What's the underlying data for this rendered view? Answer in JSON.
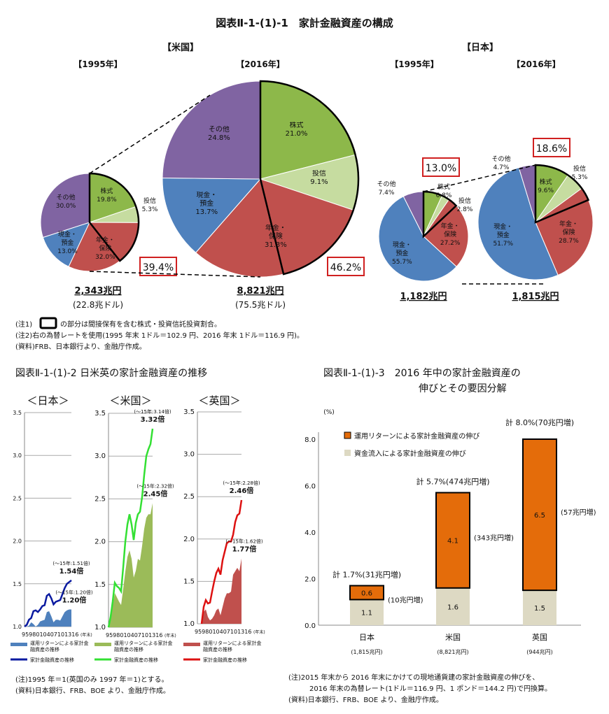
{
  "figure1": {
    "title": "図表Ⅱ-1-(1)-1　家計金融資産の構成",
    "us_label": "【米国】",
    "jp_label": "【日本】",
    "notes": [
      "(注1)",
      "の部分は間接保有を含む株式・投資信託投資割合。",
      "(注2)右の為替レートを使用(1995 年末  1ドル＝102.9 円、2016 年末  1ドル＝116.9 円)。",
      "(資料)FRB、日本銀行より、金融庁作成。"
    ]
  },
  "figure2": {
    "title": "図表Ⅱ-1-(1)-2  日米英の家計金融資産の推移",
    "notes": [
      "(注)1995 年＝1(英国のみ 1997 年＝1)とする。",
      "(資料)日本銀行、FRB、BOE より、金融庁作成。"
    ]
  },
  "figure3": {
    "title_line1": "図表Ⅱ-1-(1)-3　2016 年中の家計金融資産の",
    "title_line2": "伸びとその要因分解",
    "notes": [
      "(注)2015 年末から 2016 年末にかけての現地通貨建の家計金融資産の伸びを、",
      "2016 年末の為替レート(1ドル＝116.9 円、1 ポンド＝144.2 円)で円換算。",
      "(資料)日本銀行、FRB、BOE より、金融庁作成。"
    ]
  },
  "colors": {
    "stocks": "#8db84a",
    "funds": "#c6dca0",
    "pension": "#c0504d",
    "cash": "#4f81bd",
    "other": "#8064a2",
    "highlight_box": "#d02020",
    "jp_line": "#0a1aa0",
    "jp_area": "#4f81bd",
    "us_line": "#33e033",
    "us_area": "#9bbb59",
    "uk_line": "#dd1111",
    "uk_area": "#c0504d",
    "bar_return": "#e46c0a",
    "bar_inflow": "#ddd9c3"
  },
  "chart_data": [
    {
      "type": "pie",
      "title": "【1995年】",
      "country": "米国",
      "total": "2,343兆円",
      "total_sub": "(22.8兆ドル)",
      "indirect_share": "39.4%",
      "slices": [
        {
          "label": "株式",
          "value": 19.8
        },
        {
          "label": "投信",
          "value": 5.3
        },
        {
          "label": "年金・保険",
          "value": 32.0
        },
        {
          "label": "現金・預金",
          "value": 13.0
        },
        {
          "label": "その他",
          "value": 30.0
        }
      ]
    },
    {
      "type": "pie",
      "title": "【2016年】",
      "country": "米国",
      "total": "8,821兆円",
      "total_sub": "(75.5兆ドル)",
      "indirect_share": "46.2%",
      "slices": [
        {
          "label": "株式",
          "value": 21.0
        },
        {
          "label": "投信",
          "value": 9.1
        },
        {
          "label": "年金・保険",
          "value": 31.3
        },
        {
          "label": "現金・預金",
          "value": 13.7
        },
        {
          "label": "その他",
          "value": 24.8
        }
      ]
    },
    {
      "type": "pie",
      "title": "【1995年】",
      "country": "日本",
      "total": "1,182兆円",
      "total_sub": "",
      "indirect_share": "13.0%",
      "slices": [
        {
          "label": "株式",
          "value": 6.8
        },
        {
          "label": "投信",
          "value": 2.8
        },
        {
          "label": "年金・保険",
          "value": 27.2
        },
        {
          "label": "現金・預金",
          "value": 55.7
        },
        {
          "label": "その他",
          "value": 7.4
        }
      ]
    },
    {
      "type": "pie",
      "title": "【2016年】",
      "country": "日本",
      "total": "1,815兆円",
      "total_sub": "",
      "indirect_share": "18.6%",
      "slices": [
        {
          "label": "株式",
          "value": 9.6
        },
        {
          "label": "投信",
          "value": 5.3
        },
        {
          "label": "年金・保険",
          "value": 28.7
        },
        {
          "label": "現金・預金",
          "value": 51.7
        },
        {
          "label": "その他",
          "value": 4.7
        }
      ]
    },
    {
      "type": "line",
      "title": "＜日本＞",
      "ylim": [
        1.0,
        3.5
      ],
      "yticks": [
        "1.0",
        "1.5",
        "2.0",
        "2.5",
        "3.0",
        "3.5"
      ],
      "xtick_label": "959801040710131б",
      "x_unit": "(年末)",
      "start_year": 1995,
      "series": [
        {
          "name": "家計金融資産の推移",
          "kind": "line",
          "values": [
            1.0,
            1.02,
            1.08,
            1.1,
            1.18,
            1.19,
            1.17,
            1.2,
            1.24,
            1.25,
            1.36,
            1.38,
            1.33,
            1.26,
            1.29,
            1.3,
            1.31,
            1.38,
            1.45,
            1.5,
            1.52,
            1.54
          ]
        },
        {
          "name": "運用リターンによる家計金融資産の推移",
          "kind": "area",
          "values": [
            1.0,
            1.0,
            1.01,
            1.05,
            1.03,
            1.0,
            1.02,
            1.06,
            1.07,
            1.08,
            1.17,
            1.18,
            1.12,
            1.05,
            1.08,
            1.08,
            1.07,
            1.12,
            1.17,
            1.19,
            1.2,
            1.2
          ]
        }
      ],
      "end_labels": {
        "line": "1.54倍",
        "line_note": "(～15年:1.51倍)",
        "area": "1.20倍",
        "area_note": "(～15年:1.20倍)"
      }
    },
    {
      "type": "line",
      "title": "＜米国＞",
      "ylim": [
        1.0,
        3.5
      ],
      "yticks": [
        "1.0",
        "1.5",
        "2.0",
        "2.5",
        "3.0",
        "3.5"
      ],
      "xtick_label": "959801040710131б",
      "x_unit": "(年末)",
      "start_year": 1995,
      "series": [
        {
          "name": "家計金融資産の推移",
          "kind": "line",
          "values": [
            1.0,
            1.12,
            1.3,
            1.52,
            1.48,
            1.46,
            1.42,
            1.7,
            2.0,
            2.2,
            2.32,
            2.2,
            2.02,
            2.22,
            2.32,
            2.35,
            2.52,
            2.78,
            3.0,
            3.08,
            3.14,
            3.32
          ]
        },
        {
          "name": "運用リターンによる家計金融資産の推移",
          "kind": "area",
          "values": [
            1.0,
            1.1,
            1.25,
            1.4,
            1.35,
            1.3,
            1.26,
            1.45,
            1.65,
            1.82,
            1.9,
            1.8,
            1.58,
            1.66,
            1.8,
            1.78,
            1.95,
            2.15,
            2.28,
            2.32,
            2.32,
            2.45
          ]
        }
      ],
      "end_labels": {
        "line": "3.32倍",
        "line_note": "(～15年:3.14倍)",
        "area": "2.45倍",
        "area_note": "(～15年:2.32倍)"
      }
    },
    {
      "type": "line",
      "title": "＜英国＞",
      "ylim": [
        1.0,
        3.5
      ],
      "yticks": [
        "1.0",
        "1.5",
        "2.0",
        "2.5",
        "3.0",
        "3.5"
      ],
      "xtick_label": "959801040710131б",
      "x_unit": "(年末)",
      "start_year": 1997,
      "series": [
        {
          "name": "家計金融資産の推移",
          "kind": "line",
          "values": [
            1.0,
            1.2,
            1.28,
            1.24,
            1.25,
            1.38,
            1.5,
            1.6,
            1.65,
            1.58,
            1.75,
            1.85,
            1.95,
            1.97,
            1.97,
            2.05,
            2.2,
            2.28,
            2.3,
            2.46
          ]
        },
        {
          "name": "運用リターンによる家計金融資産の推移",
          "kind": "area",
          "values": [
            1.0,
            1.14,
            1.17,
            1.08,
            1.04,
            1.06,
            1.1,
            1.16,
            1.18,
            1.1,
            1.2,
            1.3,
            1.36,
            1.36,
            1.38,
            1.58,
            1.62,
            1.66,
            1.62,
            1.77
          ]
        }
      ],
      "end_labels": {
        "line": "2.46倍",
        "line_note": "(～15年:2.28倍)",
        "area": "1.77倍",
        "area_note": "(～15年:1.62倍)"
      }
    },
    {
      "type": "bar",
      "stacked": true,
      "ylabel": "(%)",
      "ylim": [
        0,
        8
      ],
      "yticks": [
        "0.0",
        "2.0",
        "4.0",
        "6.0",
        "8.0"
      ],
      "categories": [
        "日本",
        "米国",
        "英国"
      ],
      "category_sub": [
        "(1,815兆円)",
        "(8,821兆円)",
        "(944兆円)"
      ],
      "series": [
        {
          "name": "資金流入による家計金融資産の伸び",
          "values": [
            1.1,
            1.6,
            1.5
          ]
        },
        {
          "name": "運用リターンによる家計金融資産の伸び",
          "values": [
            0.6,
            4.1,
            6.5
          ]
        }
      ],
      "totals": [
        "計 1.7%(31兆円増)",
        "計 5.7%(474兆円増)",
        "計 8.0%(70兆円増)"
      ],
      "return_amounts": [
        "(10兆円増)",
        "(343兆円増)",
        "(57兆円増)"
      ]
    }
  ]
}
